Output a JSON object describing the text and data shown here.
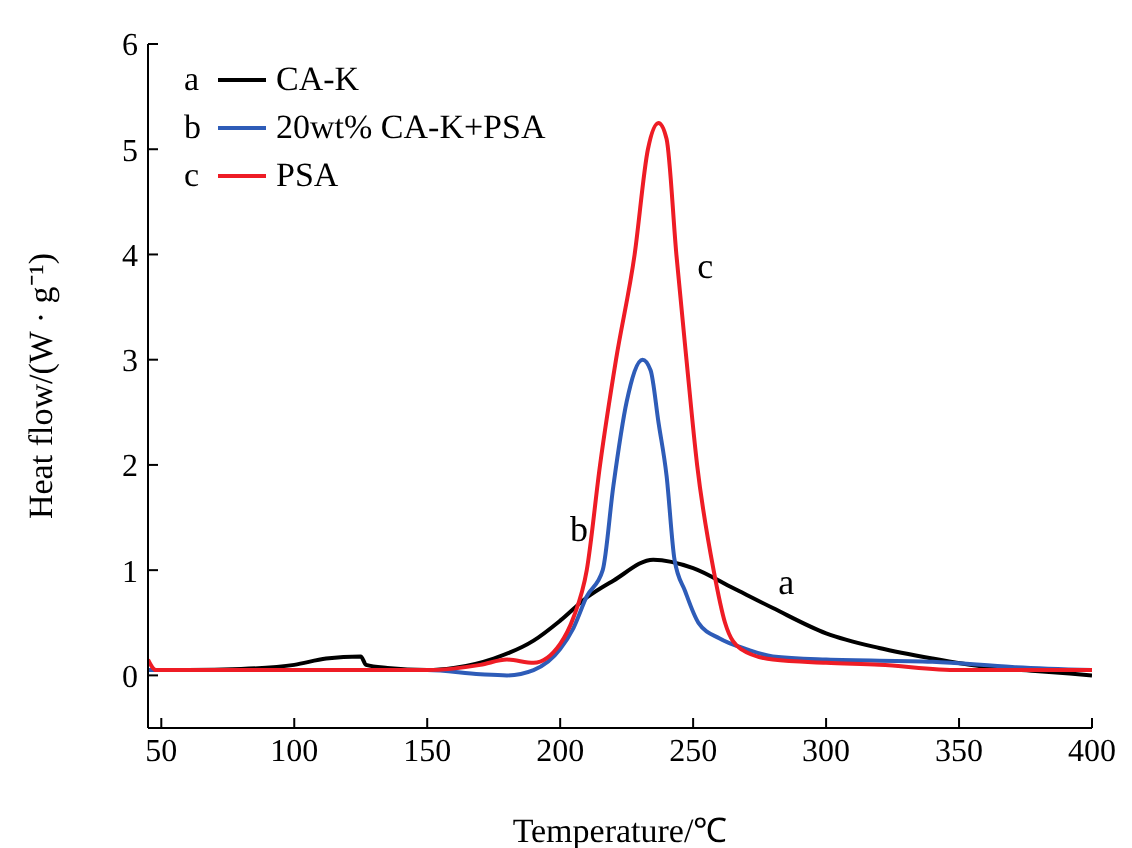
{
  "chart_data": {
    "type": "line",
    "xlabel": "Temperature/℃",
    "ylabel": "Heat flow/(W · g⁻¹)",
    "xlim": [
      45,
      400
    ],
    "xticks": [
      50,
      100,
      150,
      200,
      250,
      300,
      350,
      400
    ],
    "ylim": [
      -0.5,
      6
    ],
    "yticks": [
      0,
      1,
      2,
      3,
      4,
      5,
      6
    ],
    "grid": false,
    "legend": "top left",
    "marker": "none",
    "line_style": "solid",
    "series": [
      {
        "name": "CA-K",
        "color": "#000000",
        "x": [
          45,
          60,
          80,
          100,
          112,
          125,
          127,
          135,
          150,
          160,
          175,
          190,
          200,
          210,
          220,
          235,
          250,
          265,
          280,
          300,
          320,
          340,
          360,
          380,
          400
        ],
        "values": [
          0.05,
          0.05,
          0.06,
          0.1,
          0.16,
          0.18,
          0.1,
          0.07,
          0.05,
          0.07,
          0.16,
          0.33,
          0.52,
          0.74,
          0.9,
          1.1,
          1.02,
          0.83,
          0.64,
          0.4,
          0.26,
          0.16,
          0.08,
          0.04,
          0
        ]
      },
      {
        "name": "20wt% CA-K+PSA",
        "color": "#2e5cb8",
        "x": [
          45,
          100,
          150,
          170,
          180,
          190,
          200,
          205,
          210,
          216,
          220,
          225,
          231,
          234,
          237,
          240,
          243,
          247,
          252,
          260,
          270,
          280,
          300,
          340,
          370,
          400
        ],
        "values": [
          0.05,
          0.05,
          0.05,
          0.01,
          0,
          0.05,
          0.25,
          0.45,
          0.75,
          1,
          1.8,
          2.6,
          3,
          2.9,
          2.4,
          1.9,
          1.1,
          0.8,
          0.5,
          0.35,
          0.25,
          0.18,
          0.15,
          0.13,
          0.08,
          0.05
        ]
      },
      {
        "name": "PSA",
        "color": "#ee1c25",
        "x": [
          45,
          48,
          100,
          150,
          170,
          180,
          190,
          200,
          205,
          210,
          215,
          221,
          228,
          233,
          237,
          240,
          243.7,
          247.5,
          251.5,
          257.7,
          262,
          268,
          280,
          300,
          320,
          350,
          400
        ],
        "values": [
          0.15,
          0.05,
          0.05,
          0.05,
          0.1,
          0.15,
          0.12,
          0.3,
          0.55,
          1,
          2,
          3,
          4,
          5,
          5.25,
          5.1,
          4,
          3,
          2,
          1,
          0.5,
          0.25,
          0.15,
          0.12,
          0.1,
          0.05,
          0.05
        ]
      }
    ],
    "annotations": [
      {
        "text": "a",
        "x": 285,
        "y": 0.58
      },
      {
        "text": "b",
        "x": 218,
        "y": 1.4
      },
      {
        "text": "c",
        "x": 244,
        "y": 3.9
      }
    ]
  }
}
